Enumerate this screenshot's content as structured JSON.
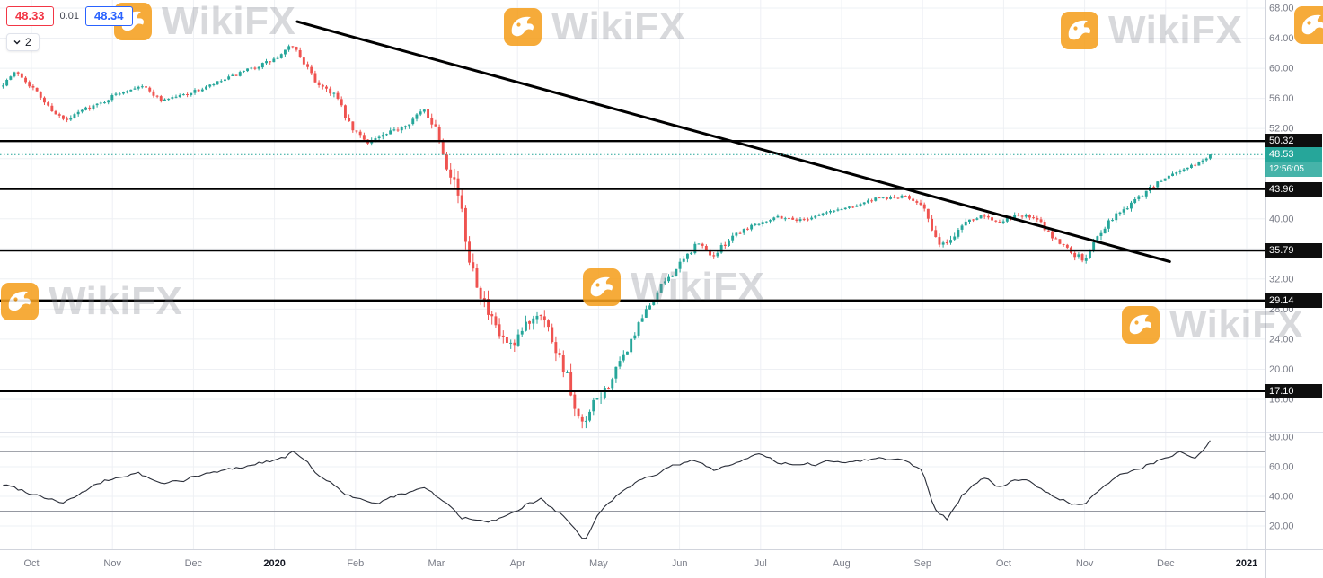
{
  "quote_panel": {
    "bid": "48.33",
    "spread": "0.01",
    "ask": "48.34",
    "interval_label": "2"
  },
  "watermark": {
    "brand": "WikiFX",
    "icon_color": "#F5A01F"
  },
  "chart_data": {
    "type": "candlestick",
    "time_axis": {
      "labels": [
        "Oct",
        "Nov",
        "Dec",
        "2020",
        "Feb",
        "Mar",
        "Apr",
        "May",
        "Jun",
        "Jul",
        "Aug",
        "Sep",
        "Oct",
        "Nov",
        "Dec",
        "2021"
      ]
    },
    "price_axis": {
      "ticks": [
        68,
        64,
        60,
        56,
        52,
        48,
        44,
        40,
        36,
        32,
        28,
        24,
        20,
        16
      ],
      "visible_range": [
        11.7,
        69.1
      ]
    },
    "current_price": {
      "value": 48.53,
      "countdown": "12:56:05"
    },
    "horizontal_levels": [
      50.32,
      43.96,
      35.79,
      29.14,
      17.1
    ],
    "trendline": {
      "from": {
        "month_index": 3.28,
        "price": 66.2
      },
      "to": {
        "month_index": 14.05,
        "price": 34.3
      }
    },
    "candle_close_anchors": [
      [
        -0.35,
        58.0
      ],
      [
        -0.18,
        59.6
      ],
      [
        0.05,
        57.0
      ],
      [
        0.2,
        55.0
      ],
      [
        0.42,
        52.9
      ],
      [
        0.65,
        54.6
      ],
      [
        0.85,
        55.3
      ],
      [
        1.05,
        56.6
      ],
      [
        1.35,
        57.8
      ],
      [
        1.6,
        55.8
      ],
      [
        1.85,
        56.4
      ],
      [
        2.1,
        57.2
      ],
      [
        2.5,
        59.0
      ],
      [
        2.8,
        60.3
      ],
      [
        3.05,
        61.4
      ],
      [
        3.22,
        63.1
      ],
      [
        3.35,
        61.0
      ],
      [
        3.5,
        58.3
      ],
      [
        3.75,
        56.5
      ],
      [
        3.95,
        51.9
      ],
      [
        4.15,
        50.3
      ],
      [
        4.4,
        51.2
      ],
      [
        4.65,
        52.8
      ],
      [
        4.85,
        54.4
      ],
      [
        5.0,
        52.0
      ],
      [
        5.12,
        47.5
      ],
      [
        5.25,
        44.5
      ],
      [
        5.38,
        36.0
      ],
      [
        5.5,
        31.8
      ],
      [
        5.65,
        26.8
      ],
      [
        5.8,
        24.0
      ],
      [
        5.95,
        22.5
      ],
      [
        6.1,
        26.0
      ],
      [
        6.28,
        28.0
      ],
      [
        6.45,
        23.5
      ],
      [
        6.6,
        19.5
      ],
      [
        6.72,
        13.5
      ],
      [
        6.82,
        12.2
      ],
      [
        6.95,
        15.5
      ],
      [
        7.1,
        17.5
      ],
      [
        7.3,
        21.5
      ],
      [
        7.55,
        27.0
      ],
      [
        7.8,
        31.5
      ],
      [
        8.0,
        33.8
      ],
      [
        8.22,
        36.8
      ],
      [
        8.42,
        35.0
      ],
      [
        8.65,
        37.8
      ],
      [
        8.9,
        39.2
      ],
      [
        9.2,
        40.3
      ],
      [
        9.5,
        39.8
      ],
      [
        9.8,
        40.8
      ],
      [
        10.1,
        41.6
      ],
      [
        10.45,
        42.7
      ],
      [
        10.8,
        42.9
      ],
      [
        11.0,
        42.0
      ],
      [
        11.15,
        37.2
      ],
      [
        11.3,
        36.6
      ],
      [
        11.5,
        39.5
      ],
      [
        11.75,
        40.7
      ],
      [
        11.95,
        39.3
      ],
      [
        12.15,
        40.6
      ],
      [
        12.4,
        40.0
      ],
      [
        12.6,
        37.6
      ],
      [
        12.8,
        36.0
      ],
      [
        13.0,
        34.3
      ],
      [
        13.15,
        37.8
      ],
      [
        13.35,
        40.2
      ],
      [
        13.55,
        41.8
      ],
      [
        13.75,
        43.6
      ],
      [
        13.95,
        45.1
      ],
      [
        14.1,
        46.1
      ],
      [
        14.3,
        46.9
      ],
      [
        14.45,
        47.6
      ],
      [
        14.55,
        48.53
      ]
    ],
    "volatility_anchors": [
      [
        -0.35,
        0.7
      ],
      [
        1,
        0.55
      ],
      [
        2.5,
        0.5
      ],
      [
        3.2,
        0.7
      ],
      [
        3.6,
        0.9
      ],
      [
        4.6,
        0.7
      ],
      [
        5.0,
        1.2
      ],
      [
        5.3,
        2.4
      ],
      [
        5.7,
        2.2
      ],
      [
        6.0,
        1.7
      ],
      [
        6.45,
        2.0
      ],
      [
        6.82,
        2.1
      ],
      [
        7.1,
        1.3
      ],
      [
        7.6,
        1.0
      ],
      [
        8.2,
        0.9
      ],
      [
        9,
        0.6
      ],
      [
        9.8,
        0.45
      ],
      [
        10.5,
        0.45
      ],
      [
        11.0,
        0.7
      ],
      [
        11.2,
        1.1
      ],
      [
        11.6,
        0.7
      ],
      [
        12.2,
        0.6
      ],
      [
        12.8,
        0.9
      ],
      [
        13.1,
        1.1
      ],
      [
        13.5,
        0.8
      ],
      [
        14.0,
        0.6
      ],
      [
        14.55,
        0.45
      ]
    ],
    "indicator": {
      "type": "oscillator",
      "ticks": [
        80,
        60,
        40,
        20
      ],
      "bands": [
        70,
        30
      ],
      "range": [
        4,
        83
      ],
      "anchors": [
        [
          -0.35,
          48
        ],
        [
          0.4,
          36
        ],
        [
          0.9,
          50
        ],
        [
          1.3,
          56
        ],
        [
          1.6,
          48
        ],
        [
          2.1,
          54
        ],
        [
          2.6,
          60
        ],
        [
          3.1,
          66
        ],
        [
          3.25,
          70
        ],
        [
          3.6,
          52
        ],
        [
          3.95,
          40
        ],
        [
          4.2,
          34
        ],
        [
          4.6,
          42
        ],
        [
          4.85,
          47
        ],
        [
          5.1,
          36
        ],
        [
          5.3,
          26
        ],
        [
          5.6,
          22
        ],
        [
          5.9,
          26
        ],
        [
          6.1,
          34
        ],
        [
          6.3,
          38
        ],
        [
          6.6,
          25
        ],
        [
          6.82,
          8
        ],
        [
          7.0,
          30
        ],
        [
          7.3,
          44
        ],
        [
          7.6,
          54
        ],
        [
          7.9,
          60
        ],
        [
          8.2,
          64
        ],
        [
          8.45,
          58
        ],
        [
          8.7,
          63
        ],
        [
          9.0,
          68
        ],
        [
          9.2,
          63
        ],
        [
          9.5,
          60
        ],
        [
          9.8,
          63
        ],
        [
          10.1,
          64
        ],
        [
          10.5,
          66
        ],
        [
          10.8,
          64
        ],
        [
          11.0,
          58
        ],
        [
          11.15,
          32
        ],
        [
          11.3,
          25
        ],
        [
          11.5,
          42
        ],
        [
          11.75,
          52
        ],
        [
          11.95,
          46
        ],
        [
          12.15,
          52
        ],
        [
          12.4,
          48
        ],
        [
          12.6,
          40
        ],
        [
          12.8,
          36
        ],
        [
          13.0,
          33
        ],
        [
          13.2,
          45
        ],
        [
          13.5,
          56
        ],
        [
          13.8,
          62
        ],
        [
          14.0,
          66
        ],
        [
          14.2,
          70
        ],
        [
          14.35,
          65
        ],
        [
          14.45,
          69
        ],
        [
          14.55,
          76
        ]
      ]
    },
    "colors": {
      "up": "#26a69a",
      "down": "#ef5350",
      "price_line": "#26a69a",
      "levels": "#000000",
      "trendline": "#000000",
      "axis_text": "#787b86",
      "year_text": "#131722",
      "grid": "#eef0f4",
      "badge_black_bg": "#0e0e0e",
      "badge_teal_bg": "#26a69a"
    }
  }
}
